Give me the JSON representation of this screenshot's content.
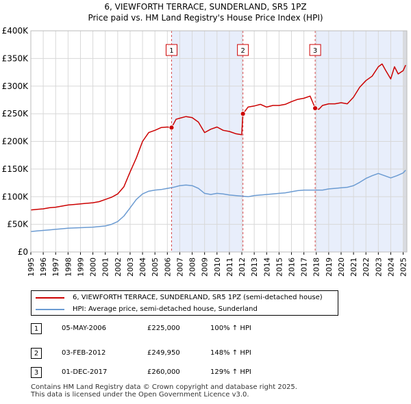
{
  "title_line1": "6, VIEWFORTH TERRACE, SUNDERLAND, SR5 1PZ",
  "title_line2": "Price paid vs. HM Land Registry's House Price Index (HPI)",
  "chart_data": {
    "type": "line",
    "title": "6, VIEWFORTH TERRACE, SUNDERLAND, SR5 1PZ — Price paid vs. HM Land Registry's House Price Index (HPI)",
    "xlabel": "",
    "ylabel": "",
    "xlim": [
      1995,
      2025.3
    ],
    "ylim": [
      0,
      400000
    ],
    "grid": true,
    "y_ticks": [
      0,
      50000,
      100000,
      150000,
      200000,
      250000,
      300000,
      350000,
      400000
    ],
    "y_tick_labels": [
      "£0",
      "£50K",
      "£100K",
      "£150K",
      "£200K",
      "£250K",
      "£300K",
      "£350K",
      "£400K"
    ],
    "x_tick_labels": [
      "1995",
      "1996",
      "1997",
      "1998",
      "1999",
      "2000",
      "2001",
      "2002",
      "2003",
      "2004",
      "2005",
      "2006",
      "2007",
      "2008",
      "2009",
      "2010",
      "2011",
      "2012",
      "2013",
      "2014",
      "2015",
      "2016",
      "2017",
      "2018",
      "2019",
      "2020",
      "2021",
      "2022",
      "2023",
      "2024",
      "2025"
    ],
    "series": [
      {
        "name": "6, VIEWFORTH TERRACE, SUNDERLAND, SR5 1PZ (semi-detached house)",
        "color": "#cc0000",
        "x": [
          1995.0,
          1995.5,
          1996.0,
          1996.5,
          1997.0,
          1997.5,
          1998.0,
          1998.5,
          1999.0,
          1999.5,
          2000.0,
          2000.5,
          2001.0,
          2001.5,
          2002.0,
          2002.5,
          2003.0,
          2003.5,
          2004.0,
          2004.5,
          2005.0,
          2005.5,
          2006.0,
          2006.34,
          2006.7,
          2007.0,
          2007.5,
          2008.0,
          2008.5,
          2009.0,
          2009.5,
          2010.0,
          2010.5,
          2011.0,
          2011.5,
          2011.99,
          2012.09,
          2012.5,
          2013.0,
          2013.5,
          2014.0,
          2014.5,
          2015.0,
          2015.5,
          2016.0,
          2016.5,
          2017.0,
          2017.5,
          2017.91,
          2018.2,
          2018.5,
          2019.0,
          2019.5,
          2020.0,
          2020.5,
          2021.0,
          2021.5,
          2022.0,
          2022.5,
          2023.0,
          2023.3,
          2023.6,
          2024.0,
          2024.3,
          2024.6,
          2025.0,
          2025.2
        ],
        "y": [
          76000,
          77000,
          78000,
          80000,
          81000,
          83000,
          85000,
          86000,
          87000,
          88000,
          89000,
          91000,
          95000,
          99000,
          105000,
          118000,
          145000,
          170000,
          200000,
          216000,
          220000,
          225000,
          226000,
          225000,
          240000,
          242000,
          245000,
          243000,
          235000,
          216000,
          222000,
          226000,
          220000,
          218000,
          214000,
          212000,
          249950,
          262000,
          264000,
          267000,
          262000,
          265000,
          265000,
          267000,
          272000,
          276000,
          278000,
          282000,
          260000,
          258000,
          265000,
          268000,
          268000,
          270000,
          268000,
          280000,
          298000,
          310000,
          318000,
          335000,
          340000,
          328000,
          313000,
          335000,
          322000,
          328000,
          338000
        ]
      },
      {
        "name": "HPI: Average price, semi-detached house, Sunderland",
        "color": "#6b9bd2",
        "x": [
          1995.0,
          1995.5,
          1996.0,
          1996.5,
          1997.0,
          1997.5,
          1998.0,
          1998.5,
          1999.0,
          1999.5,
          2000.0,
          2000.5,
          2001.0,
          2001.5,
          2002.0,
          2002.5,
          2003.0,
          2003.5,
          2004.0,
          2004.5,
          2005.0,
          2005.5,
          2006.0,
          2006.5,
          2007.0,
          2007.5,
          2008.0,
          2008.5,
          2009.0,
          2009.5,
          2010.0,
          2010.5,
          2011.0,
          2011.5,
          2012.0,
          2012.5,
          2013.0,
          2013.5,
          2014.0,
          2014.5,
          2015.0,
          2015.5,
          2016.0,
          2016.5,
          2017.0,
          2017.5,
          2018.0,
          2018.5,
          2019.0,
          2019.5,
          2020.0,
          2020.5,
          2021.0,
          2021.5,
          2022.0,
          2022.5,
          2023.0,
          2023.5,
          2024.0,
          2024.5,
          2025.0,
          2025.2
        ],
        "y": [
          37000,
          38000,
          39000,
          40000,
          41000,
          42000,
          43000,
          43500,
          44000,
          44500,
          45000,
          46000,
          47000,
          50000,
          55000,
          65000,
          80000,
          95000,
          105000,
          110000,
          112000,
          113000,
          115000,
          117000,
          120000,
          121000,
          120000,
          115000,
          106000,
          104000,
          106000,
          105000,
          103000,
          102000,
          101000,
          100000,
          102000,
          103000,
          104000,
          105000,
          106000,
          107000,
          109000,
          111000,
          112000,
          112000,
          112000,
          112000,
          114000,
          115000,
          116000,
          117000,
          120000,
          126000,
          133000,
          138000,
          142000,
          138000,
          134000,
          138000,
          143000,
          148000
        ]
      }
    ],
    "markers": [
      {
        "label": "1",
        "x": 2006.34,
        "y": 225000
      },
      {
        "label": "2",
        "x": 2012.09,
        "y": 249950
      },
      {
        "label": "3",
        "x": 2017.91,
        "y": 260000
      }
    ]
  },
  "legend": {
    "property_label": "6, VIEWFORTH TERRACE, SUNDERLAND, SR5 1PZ (semi-detached house)",
    "hpi_label": "HPI: Average price, semi-detached house, Sunderland",
    "property_color": "#cc0000",
    "hpi_color": "#6b9bd2"
  },
  "sales": [
    {
      "num": "1",
      "date": "05-MAY-2006",
      "price": "£225,000",
      "hpi": "100% ↑ HPI"
    },
    {
      "num": "2",
      "date": "03-FEB-2012",
      "price": "£249,950",
      "hpi": "148% ↑ HPI"
    },
    {
      "num": "3",
      "date": "01-DEC-2017",
      "price": "£260,000",
      "hpi": "129% ↑ HPI"
    }
  ],
  "footer": "Contains HM Land Registry data © Crown copyright and database right 2025.\nThis data is licensed under the Open Government Licence v3.0."
}
